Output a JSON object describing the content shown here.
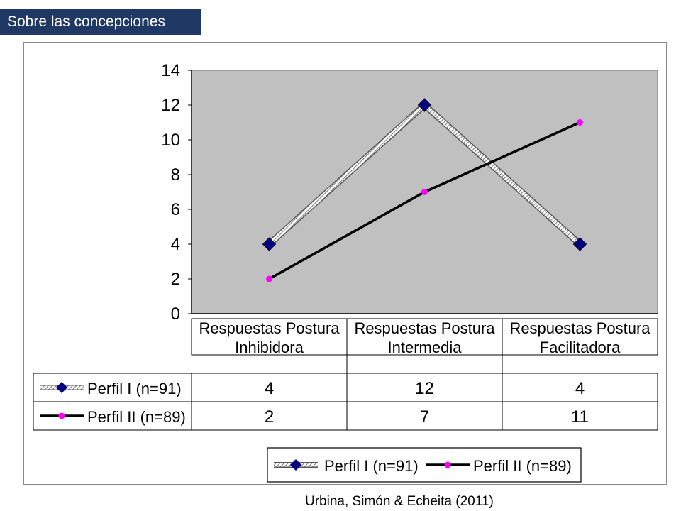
{
  "header": {
    "title": "Sobre las concepciones"
  },
  "citation": "Urbina, Simón & Echeita (2011)",
  "chart_data": {
    "type": "line",
    "categories": [
      [
        "Respuestas Postura",
        "Inhibidora"
      ],
      [
        "Respuestas Postura",
        "Intermedia"
      ],
      [
        "Respuestas Postura",
        "Facilitadora"
      ]
    ],
    "ylim": [
      0,
      14
    ],
    "yticks": [
      0,
      2,
      4,
      6,
      8,
      10,
      12,
      14
    ],
    "grid": false,
    "plot_background": "#c0c0c0",
    "legend_position": "bottom",
    "data_table": true,
    "series": [
      {
        "name": "Perfil I (n=91)",
        "values": [
          4,
          12,
          4
        ],
        "color": "#000080",
        "marker": "diamond",
        "line_style": "gray-hatched"
      },
      {
        "name": "Perfil II (n=89)",
        "values": [
          2,
          7,
          11
        ],
        "color": "#000000",
        "marker_color": "#ff00ff",
        "marker": "circle",
        "line_style": "solid"
      }
    ]
  }
}
